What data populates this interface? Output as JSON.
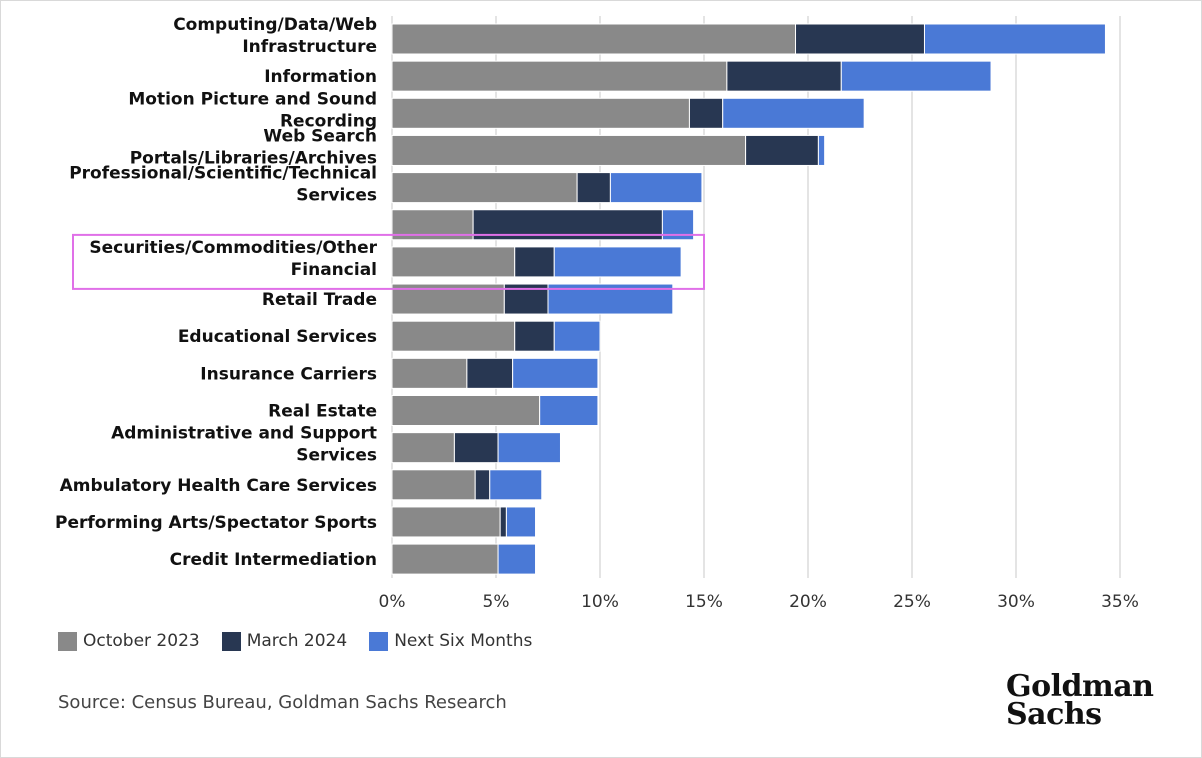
{
  "chart_data": {
    "type": "bar",
    "orientation": "horizontal",
    "stacked": true,
    "categories": [
      [
        "Computing/Data/Web",
        "Infrastructure"
      ],
      [
        "Information"
      ],
      [
        "Motion Picture and Sound",
        "Recording"
      ],
      [
        "Web Search",
        "Portals/Libraries/Archives"
      ],
      [
        "Professional/Scientific/Technical",
        "Services"
      ],
      [],
      [
        "Securities/Commodities/Other",
        "Financial"
      ],
      [
        "Retail Trade"
      ],
      [
        "Educational Services"
      ],
      [
        "Insurance Carriers"
      ],
      [
        "Real Estate"
      ],
      [
        "Administrative and Support",
        "Services"
      ],
      [
        "Ambulatory Health Care Services"
      ],
      [
        "Performing Arts/Spectator Sports"
      ],
      [
        "Credit Intermediation"
      ]
    ],
    "series": [
      {
        "name": "October 2023",
        "color": "#898989",
        "values": [
          19.4,
          16.1,
          14.3,
          17.0,
          8.9,
          3.9,
          5.9,
          5.4,
          5.9,
          3.6,
          7.1,
          3.0,
          4.0,
          5.2,
          5.1
        ]
      },
      {
        "name": "March 2024",
        "color": "#283752",
        "values": [
          6.2,
          5.5,
          1.6,
          3.5,
          1.6,
          9.1,
          1.9,
          2.1,
          1.9,
          2.2,
          0.0,
          2.1,
          0.7,
          0.3,
          0.0
        ]
      },
      {
        "name": "Next Six Months",
        "color": "#4a79d6",
        "values": [
          8.7,
          7.2,
          6.8,
          0.3,
          4.4,
          1.5,
          6.1,
          6.0,
          2.2,
          4.1,
          2.8,
          3.0,
          2.5,
          1.4,
          1.8
        ]
      }
    ],
    "xlim": [
      0,
      35
    ],
    "x_ticks": [
      0,
      5,
      10,
      15,
      20,
      25,
      30,
      35
    ],
    "x_tick_labels": [
      "0%",
      "5%",
      "10%",
      "15%",
      "20%",
      "25%",
      "30%",
      "35%"
    ],
    "grid": "vertical",
    "legend_position": "bottom-left",
    "highlight": {
      "category_index": 6,
      "color": "#e070e8"
    }
  },
  "legend": [
    {
      "label": "October 2023",
      "color": "#898989"
    },
    {
      "label": "March 2024",
      "color": "#283752"
    },
    {
      "label": "Next Six Months",
      "color": "#4a79d6"
    }
  ],
  "source": "Source: Census Bureau, Goldman Sachs Research",
  "logo": {
    "line1": "Goldman",
    "line2": "Sachs"
  }
}
